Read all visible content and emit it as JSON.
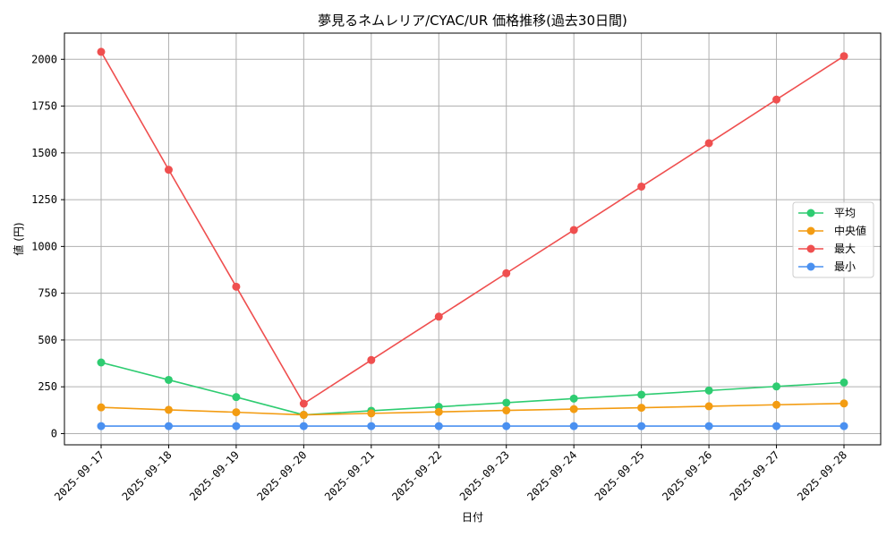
{
  "chart_data": {
    "type": "line",
    "title": "夢見るネムレリア/CYAC/UR 価格推移(過去30日間)",
    "xlabel": "日付",
    "ylabel": "値 (円)",
    "categories": [
      "2025-09-17",
      "2025-09-18",
      "2025-09-19",
      "2025-09-20",
      "2025-09-21",
      "2025-09-22",
      "2025-09-23",
      "2025-09-24",
      "2025-09-25",
      "2025-09-26",
      "2025-09-27",
      "2025-09-28"
    ],
    "ylim": [
      -60,
      2140
    ],
    "yticks": [
      0,
      250,
      500,
      750,
      1000,
      1250,
      1500,
      1750,
      2000
    ],
    "grid": true,
    "legend_position": "right",
    "series": [
      {
        "name": "平均",
        "color": "#2ecc71",
        "values": [
          380,
          287,
          195,
          100,
          122,
          143,
          165,
          187,
          208,
          230,
          252,
          273
        ]
      },
      {
        "name": "中央値",
        "color": "#f39c12",
        "values": [
          140,
          127,
          114,
          100,
          108,
          116,
          124,
          131,
          138,
          146,
          154,
          161
        ]
      },
      {
        "name": "最大",
        "color": "#ef4f4f",
        "values": [
          2040,
          1410,
          785,
          160,
          393,
          625,
          857,
          1088,
          1320,
          1552,
          1785,
          2017
        ]
      },
      {
        "name": "最小",
        "color": "#4a90f0",
        "values": [
          40,
          40,
          40,
          40,
          40,
          40,
          40,
          40,
          40,
          40,
          40,
          40
        ]
      }
    ]
  }
}
